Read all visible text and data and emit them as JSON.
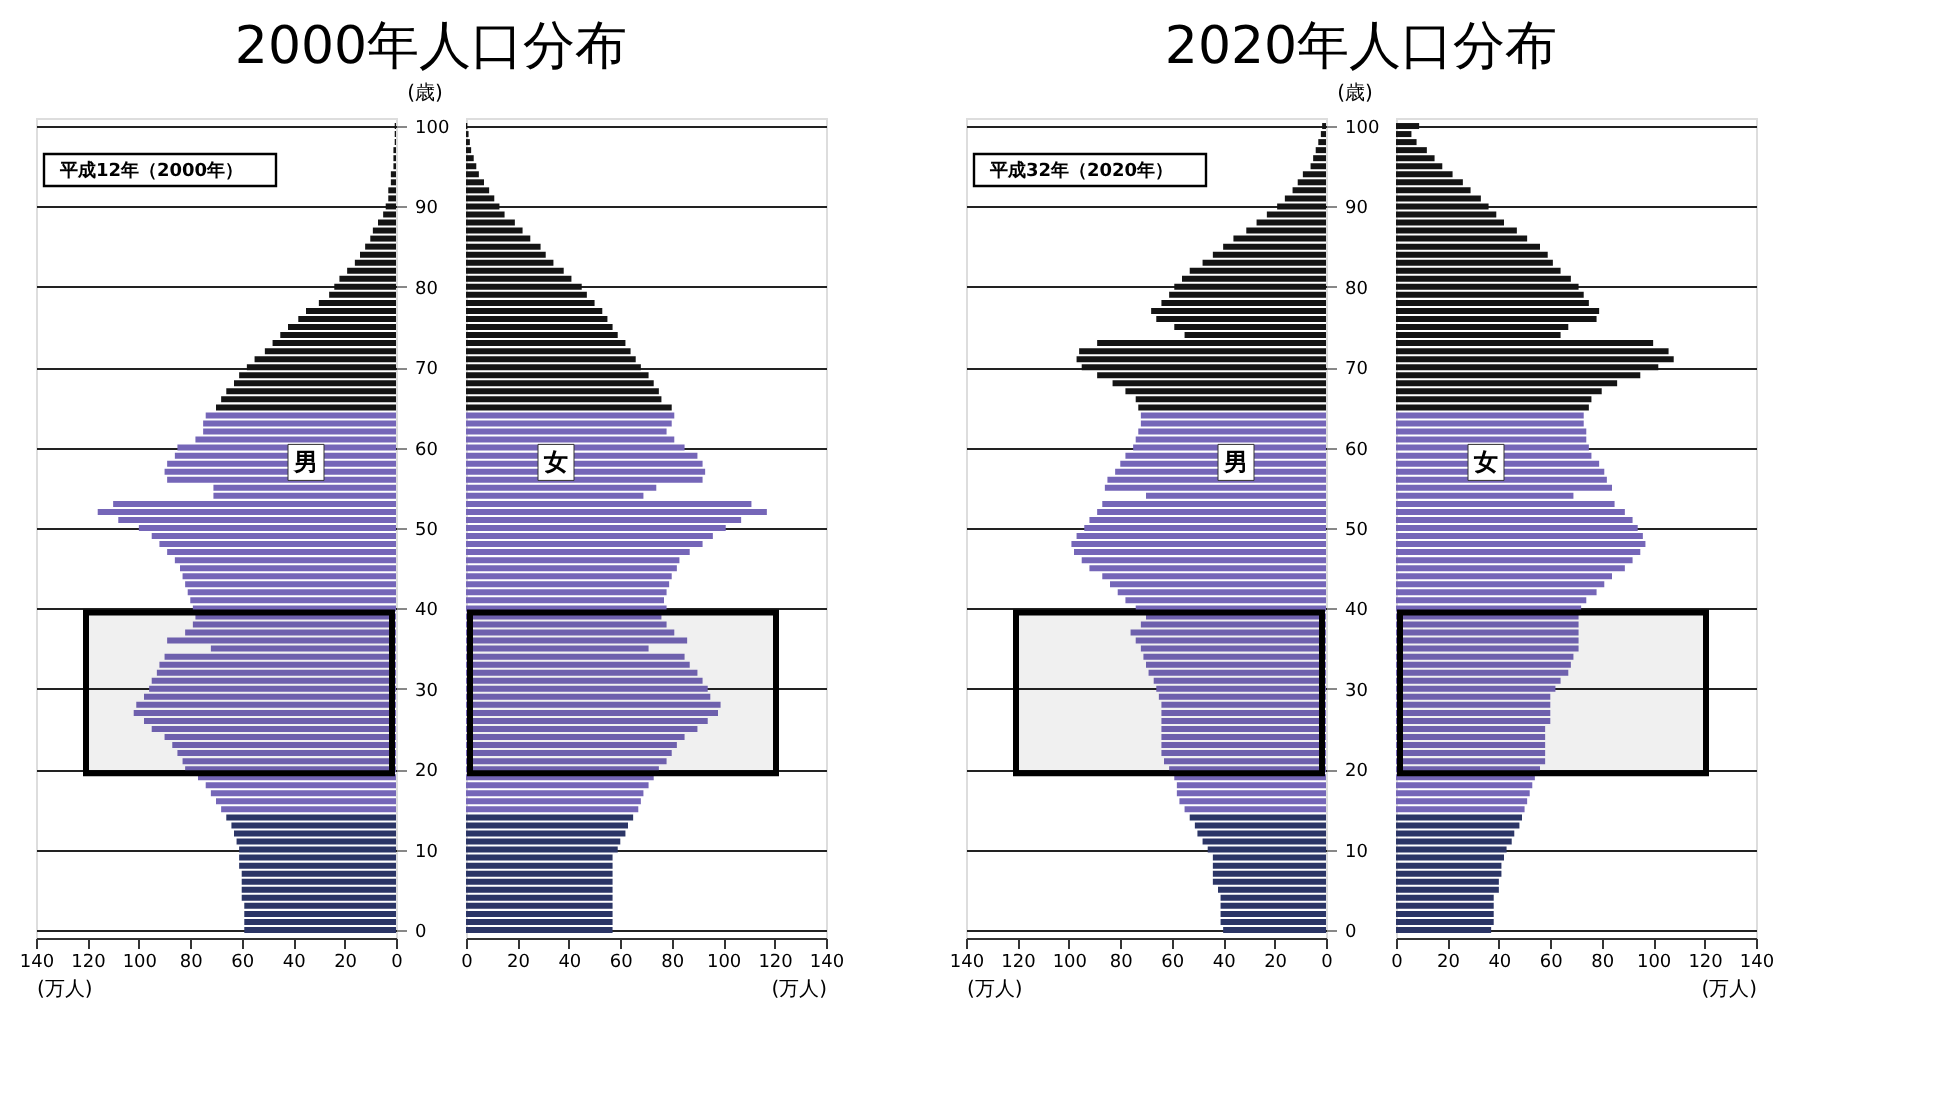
{
  "chart_data": [
    {
      "type": "bar",
      "orientation": "horizontal",
      "title": "2000年人口分布",
      "xlabel": "(万人)",
      "ylabel": "(歳)",
      "xlim": [
        140,
        0
      ],
      "xticks": [
        0,
        20,
        40,
        60,
        80,
        100,
        120,
        140
      ],
      "ylim": [
        -1,
        101
      ],
      "yticks": [
        0,
        10,
        20,
        30,
        40,
        50,
        60,
        70,
        80,
        90,
        100
      ],
      "grid": "y",
      "annotations": [
        "平成12年（2000年）",
        "男"
      ],
      "bands": [
        {
          "axis": "y",
          "from": 19.5,
          "to": 39.5,
          "color": "#000000"
        }
      ],
      "series": [
        {
          "color": "#2b3566",
          "x": [
            0,
            1,
            2,
            3,
            4,
            5,
            6,
            7,
            8,
            9,
            10,
            11,
            12,
            13,
            14
          ],
          "values": [
            59,
            59,
            59,
            59,
            60,
            60,
            60,
            60,
            61,
            61,
            61,
            62,
            63,
            64,
            66
          ]
        },
        {
          "color": "#7566b8",
          "x": [
            15,
            16,
            17,
            18,
            19,
            20,
            21,
            22,
            23,
            24,
            25,
            26,
            27,
            28,
            29,
            30,
            31,
            32,
            33,
            34,
            35,
            36,
            37,
            38,
            39,
            40,
            41,
            42,
            43,
            44,
            45,
            46,
            47,
            48,
            49,
            50,
            51,
            52,
            53,
            54,
            55,
            56,
            57,
            58,
            59,
            60,
            61,
            62,
            63,
            64
          ],
          "values": [
            68,
            70,
            72,
            74,
            77,
            82,
            83,
            85,
            87,
            90,
            95,
            98,
            102,
            101,
            98,
            96,
            95,
            93,
            92,
            90,
            72,
            89,
            82,
            79,
            78,
            79,
            80,
            81,
            82,
            83,
            84,
            86,
            89,
            92,
            95,
            100,
            108,
            116,
            110,
            71,
            71,
            89,
            90,
            89,
            86,
            85,
            78,
            75,
            75,
            74
          ]
        },
        {
          "color": "#141414",
          "x": [
            65,
            66,
            67,
            68,
            69,
            70,
            71,
            72,
            73,
            74,
            75,
            76,
            77,
            78,
            79,
            80,
            81,
            82,
            83,
            84,
            85,
            86,
            87,
            88,
            89,
            90,
            91,
            92,
            93,
            94,
            95,
            96,
            97,
            98,
            99,
            100
          ],
          "values": [
            70,
            68,
            66,
            63,
            61,
            58,
            55,
            51,
            48,
            45,
            42,
            38,
            35,
            30,
            26,
            24,
            22,
            19,
            16,
            14,
            12,
            10,
            9,
            7,
            5,
            4,
            3,
            3,
            2,
            2,
            1,
            1,
            1,
            0.5,
            0.5,
            0.5
          ]
        }
      ]
    },
    {
      "type": "bar",
      "orientation": "horizontal",
      "xlabel": "(万人)",
      "xlim": [
        0,
        140
      ],
      "xticks": [
        0,
        20,
        40,
        60,
        80,
        100,
        120,
        140
      ],
      "ylim": [
        -1,
        101
      ],
      "yticks": [
        0,
        10,
        20,
        30,
        40,
        50,
        60,
        70,
        80,
        90,
        100
      ],
      "grid": "y",
      "tick_labels": "x",
      "annotations": [
        "女"
      ],
      "bands": [
        {
          "axis": "y",
          "from": 19.5,
          "to": 39.5,
          "color": "#000000"
        }
      ],
      "series": [
        {
          "color": "#2b3566",
          "x": [
            0,
            1,
            2,
            3,
            4,
            5,
            6,
            7,
            8,
            9,
            10,
            11,
            12,
            13,
            14
          ],
          "values": [
            57,
            57,
            57,
            57,
            57,
            57,
            57,
            57,
            57,
            57,
            59,
            60,
            62,
            63,
            65
          ]
        },
        {
          "color": "#7566b8",
          "x": [
            15,
            16,
            17,
            18,
            19,
            20,
            21,
            22,
            23,
            24,
            25,
            26,
            27,
            28,
            29,
            30,
            31,
            32,
            33,
            34,
            35,
            36,
            37,
            38,
            39,
            40,
            41,
            42,
            43,
            44,
            45,
            46,
            47,
            48,
            49,
            50,
            51,
            52,
            53,
            54,
            55,
            56,
            57,
            58,
            59,
            60,
            61,
            62,
            63,
            64
          ],
          "values": [
            67,
            68,
            69,
            71,
            73,
            75,
            78,
            80,
            82,
            85,
            90,
            94,
            98,
            99,
            95,
            94,
            92,
            90,
            87,
            85,
            71,
            86,
            81,
            78,
            76,
            78,
            77,
            78,
            79,
            80,
            82,
            83,
            87,
            92,
            96,
            101,
            107,
            117,
            111,
            69,
            74,
            92,
            93,
            92,
            90,
            85,
            81,
            78,
            80,
            81
          ]
        },
        {
          "color": "#141414",
          "x": [
            65,
            66,
            67,
            68,
            69,
            70,
            71,
            72,
            73,
            74,
            75,
            76,
            77,
            78,
            79,
            80,
            81,
            82,
            83,
            84,
            85,
            86,
            87,
            88,
            89,
            90,
            91,
            92,
            93,
            94,
            95,
            96,
            97,
            98,
            99,
            100
          ],
          "values": [
            80,
            76,
            75,
            73,
            71,
            68,
            66,
            64,
            62,
            59,
            57,
            55,
            53,
            50,
            47,
            45,
            41,
            38,
            34,
            31,
            29,
            25,
            22,
            19,
            15,
            13,
            11,
            9,
            7,
            5,
            4,
            3,
            2,
            1.5,
            1,
            0.5
          ]
        }
      ]
    },
    {
      "type": "bar",
      "orientation": "horizontal",
      "title": "2020年人口分布",
      "xlabel": "(万人)",
      "ylabel": "(歳)",
      "xlim": [
        140,
        0
      ],
      "xticks": [
        0,
        20,
        40,
        60,
        80,
        100,
        120,
        140
      ],
      "ylim": [
        -1,
        101
      ],
      "yticks": [
        0,
        10,
        20,
        30,
        40,
        50,
        60,
        70,
        80,
        90,
        100
      ],
      "grid": "y",
      "annotations": [
        "平成32年（2020年）",
        "男"
      ],
      "bands": [
        {
          "axis": "y",
          "from": 19.5,
          "to": 39.5,
          "color": "#000000"
        }
      ],
      "series": [
        {
          "color": "#2b3566",
          "x": [
            0,
            1,
            2,
            3,
            4,
            5,
            6,
            7,
            8,
            9,
            10,
            11,
            12,
            13,
            14
          ],
          "values": [
            40,
            41,
            41,
            41,
            41,
            42,
            44,
            44,
            44,
            44,
            46,
            48,
            50,
            51,
            53
          ]
        },
        {
          "color": "#7566b8",
          "x": [
            15,
            16,
            17,
            18,
            19,
            20,
            21,
            22,
            23,
            24,
            25,
            26,
            27,
            28,
            29,
            30,
            31,
            32,
            33,
            34,
            35,
            36,
            37,
            38,
            39,
            40,
            41,
            42,
            43,
            44,
            45,
            46,
            47,
            48,
            49,
            50,
            51,
            52,
            53,
            54,
            55,
            56,
            57,
            58,
            59,
            60,
            61,
            62,
            63,
            64
          ],
          "values": [
            55,
            57,
            58,
            58,
            59,
            61,
            63,
            64,
            64,
            64,
            64,
            64,
            64,
            64,
            65,
            66,
            67,
            69,
            70,
            71,
            72,
            74,
            76,
            72,
            70,
            74,
            78,
            81,
            84,
            87,
            92,
            95,
            98,
            99,
            97,
            94,
            92,
            89,
            87,
            70,
            86,
            85,
            82,
            80,
            78,
            75,
            74,
            73,
            72,
            72
          ]
        },
        {
          "color": "#141414",
          "x": [
            65,
            66,
            67,
            68,
            69,
            70,
            71,
            72,
            73,
            74,
            75,
            76,
            77,
            78,
            79,
            80,
            81,
            82,
            83,
            84,
            85,
            86,
            87,
            88,
            89,
            90,
            91,
            92,
            93,
            94,
            95,
            96,
            97,
            98,
            99,
            100
          ],
          "values": [
            73,
            74,
            78,
            83,
            89,
            95,
            97,
            96,
            89,
            55,
            59,
            66,
            68,
            64,
            61,
            59,
            56,
            53,
            48,
            44,
            40,
            36,
            31,
            27,
            23,
            19,
            16,
            13,
            11,
            9,
            6,
            5,
            4,
            3,
            2,
            1.5
          ]
        }
      ]
    },
    {
      "type": "bar",
      "orientation": "horizontal",
      "xlabel": "(万人)",
      "xlim": [
        0,
        140
      ],
      "xticks": [
        0,
        20,
        40,
        60,
        80,
        100,
        120,
        140
      ],
      "ylim": [
        -1,
        101
      ],
      "yticks": [
        0,
        10,
        20,
        30,
        40,
        50,
        60,
        70,
        80,
        90,
        100
      ],
      "grid": "y",
      "tick_labels": "x",
      "annotations": [
        "女"
      ],
      "bands": [
        {
          "axis": "y",
          "from": 19.5,
          "to": 39.5,
          "color": "#000000"
        }
      ],
      "series": [
        {
          "color": "#2b3566",
          "x": [
            0,
            1,
            2,
            3,
            4,
            5,
            6,
            7,
            8,
            9,
            10,
            11,
            12,
            13,
            14
          ],
          "values": [
            37,
            38,
            38,
            38,
            38,
            40,
            40,
            41,
            41,
            42,
            43,
            45,
            46,
            48,
            49
          ]
        },
        {
          "color": "#7566b8",
          "x": [
            15,
            16,
            17,
            18,
            19,
            20,
            21,
            22,
            23,
            24,
            25,
            26,
            27,
            28,
            29,
            30,
            31,
            32,
            33,
            34,
            35,
            36,
            37,
            38,
            39,
            40,
            41,
            42,
            43,
            44,
            45,
            46,
            47,
            48,
            49,
            50,
            51,
            52,
            53,
            54,
            55,
            56,
            57,
            58,
            59,
            60,
            61,
            62,
            63,
            64
          ],
          "values": [
            50,
            51,
            52,
            53,
            54,
            56,
            58,
            58,
            58,
            58,
            58,
            60,
            60,
            60,
            60,
            62,
            64,
            67,
            68,
            69,
            71,
            71,
            71,
            71,
            71,
            72,
            74,
            78,
            81,
            84,
            89,
            92,
            95,
            97,
            96,
            94,
            92,
            89,
            85,
            69,
            84,
            82,
            81,
            79,
            76,
            75,
            74,
            74,
            73,
            73
          ]
        },
        {
          "color": "#141414",
          "x": [
            65,
            66,
            67,
            68,
            69,
            70,
            71,
            72,
            73,
            74,
            75,
            76,
            77,
            78,
            79,
            80,
            81,
            82,
            83,
            84,
            85,
            86,
            87,
            88,
            89,
            90,
            91,
            92,
            93,
            94,
            95,
            96,
            97,
            98,
            99,
            100
          ],
          "values": [
            75,
            76,
            80,
            86,
            95,
            102,
            108,
            106,
            100,
            64,
            67,
            78,
            79,
            75,
            73,
            71,
            68,
            64,
            61,
            59,
            56,
            51,
            47,
            42,
            39,
            36,
            33,
            29,
            26,
            22,
            18,
            15,
            12,
            8,
            6,
            9
          ]
        }
      ]
    }
  ]
}
